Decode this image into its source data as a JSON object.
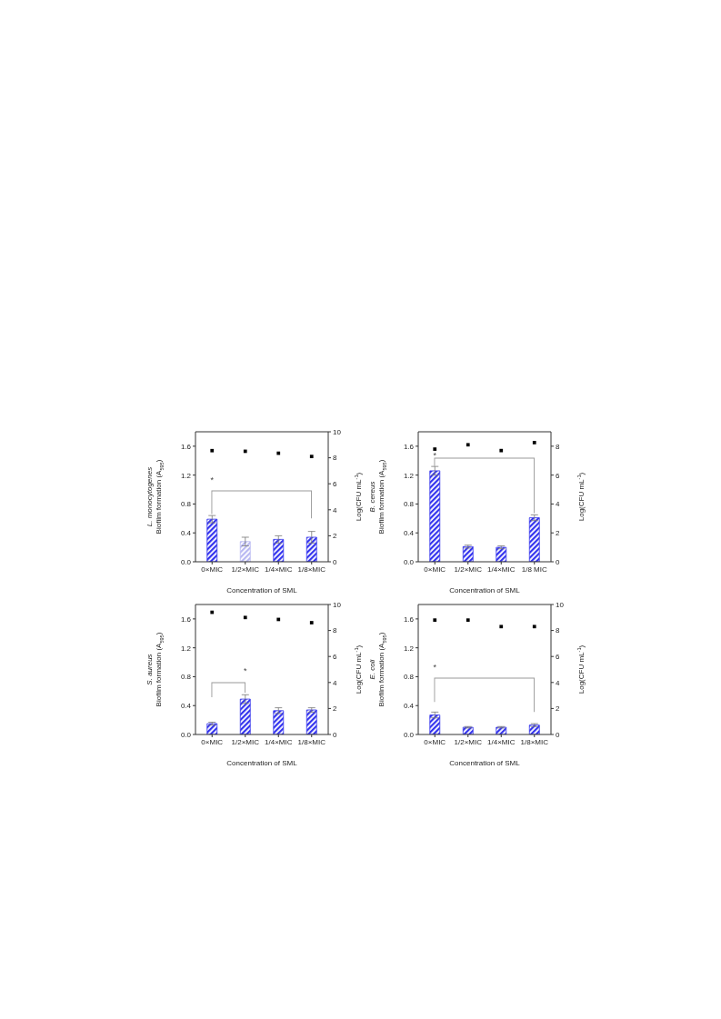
{
  "chart_data": [
    {
      "type": "bar",
      "xlabel": "Concentration of SML",
      "ylabel": "L. monocytogenes\nBiofilm formation (A$_{595}$)",
      "y2label": "Log(CFU mL$^{-1}$)",
      "categories": [
        "0×MIC",
        "1/2×MIC",
        "1/4×MIC",
        "1/8×MIC"
      ],
      "series": [
        {
          "colors": [
            "#3333ee",
            "#b8b8f2",
            "#3333ee",
            "#3333ee"
          ],
          "values": [
            0.59,
            0.28,
            0.31,
            0.34
          ],
          "errors": [
            0.05,
            0.06,
            0.05,
            0.08
          ]
        },
        {
          "type": "scatter",
          "axis": "y2",
          "color": "#000000",
          "x": [
            "0×MIC",
            "1/2×MIC",
            "1/4×MIC",
            "1/8×MIC"
          ],
          "values": [
            8.55,
            8.5,
            8.35,
            8.1
          ]
        }
      ],
      "ylim": [
        0,
        1.8
      ],
      "yticks": [
        {
          "value": 0,
          "label": "0.0"
        },
        {
          "value": 0.4,
          "label": "0.4"
        },
        {
          "value": 0.8,
          "label": "0.8"
        },
        {
          "value": 1.2,
          "label": "1.2"
        },
        {
          "value": 1.6,
          "label": "1.6"
        }
      ],
      "y2lim": [
        0,
        10
      ],
      "y2ticks": [
        0,
        2,
        4,
        6,
        8,
        10
      ],
      "marker": "square",
      "grid": false,
      "legend": false,
      "annotations": [
        "*"
      ]
    },
    {
      "type": "bar",
      "xlabel": "Concentration of SML",
      "ylabel": "B. cereus\nBiofilm formation (A$_{595}$)",
      "y2label": "Log(CFU mL$^{-1}$)",
      "categories": [
        "0×MIC",
        "1/2×MIC",
        "1/4×MIC",
        "1/8 MIC"
      ],
      "series": [
        {
          "colors": [
            "#3333ee",
            "#3333ee",
            "#3333ee",
            "#3333ee"
          ],
          "values": [
            1.26,
            0.21,
            0.2,
            0.61
          ],
          "errors": [
            0.06,
            0.02,
            0.02,
            0.04
          ]
        },
        {
          "type": "scatter",
          "axis": "y2",
          "color": "#000000",
          "x": [
            "0×MIC",
            "1/2×MIC",
            "1/4×MIC",
            "1/8 MIC"
          ],
          "values": [
            7.8,
            8.1,
            7.7,
            8.25
          ]
        }
      ],
      "ylim": [
        0,
        1.8
      ],
      "yticks": [
        {
          "value": 0,
          "label": "0.0"
        },
        {
          "value": 0.4,
          "label": "0.4"
        },
        {
          "value": 0.8,
          "label": "0.8"
        },
        {
          "value": 1.2,
          "label": "1.2"
        },
        {
          "value": 1.6,
          "label": "1.6"
        }
      ],
      "y2lim": [
        0,
        9
      ],
      "y2ticks": [
        0,
        2,
        4,
        6,
        8
      ],
      "marker": "square",
      "grid": false,
      "legend": false,
      "annotations": [
        "*"
      ]
    },
    {
      "type": "bar",
      "xlabel": "Concentration of SML",
      "ylabel": "S. aureus\nBiofilm formation (A$_{595}$)",
      "y2label": "Log(CFU mL$^{-1}$)",
      "categories": [
        "0×MIC",
        "1/2×MIC",
        "1/4×MIC",
        "1/8×MIC"
      ],
      "series": [
        {
          "colors": [
            "#3333ee",
            "#3333ee",
            "#3333ee",
            "#3333ee"
          ],
          "values": [
            0.15,
            0.49,
            0.33,
            0.34
          ],
          "errors": [
            0.02,
            0.06,
            0.04,
            0.03
          ]
        },
        {
          "type": "scatter",
          "axis": "y2",
          "color": "#000000",
          "x": [
            "0×MIC",
            "1/2×MIC",
            "1/4×MIC",
            "1/8×MIC"
          ],
          "values": [
            9.4,
            9.0,
            8.85,
            8.6
          ]
        }
      ],
      "ylim": [
        0,
        1.8
      ],
      "yticks": [
        {
          "value": 0,
          "label": "0.0"
        },
        {
          "value": 0.4,
          "label": "0.4"
        },
        {
          "value": 0.8,
          "label": "0.8"
        },
        {
          "value": 1.2,
          "label": "1.2"
        },
        {
          "value": 1.6,
          "label": "1.6"
        }
      ],
      "y2lim": [
        0,
        10
      ],
      "y2ticks": [
        0,
        2,
        4,
        6,
        8,
        10
      ],
      "marker": "square",
      "grid": false,
      "legend": false,
      "annotations": [
        "*"
      ]
    },
    {
      "type": "bar",
      "xlabel": "Concentration of SML",
      "ylabel": "E. coli\nBiofilm formation (A$_{595}$)",
      "y2label": "Log(CFU mL$^{-1}$)",
      "categories": [
        "0×MIC",
        "1/2×MIC",
        "1/4×MIC",
        "1/8×MIC"
      ],
      "series": [
        {
          "colors": [
            "#3333ee",
            "#3333ee",
            "#3333ee",
            "#3333ee"
          ],
          "values": [
            0.27,
            0.1,
            0.1,
            0.13
          ],
          "errors": [
            0.04,
            0.01,
            0.01,
            0.02
          ]
        },
        {
          "type": "scatter",
          "axis": "y2",
          "color": "#000000",
          "x": [
            "0×MIC",
            "1/2×MIC",
            "1/4×MIC",
            "1/8×MIC"
          ],
          "values": [
            8.8,
            8.8,
            8.3,
            8.3
          ]
        }
      ],
      "ylim": [
        0,
        1.8
      ],
      "yticks": [
        {
          "value": 0,
          "label": "0.0"
        },
        {
          "value": 0.4,
          "label": "0.4"
        },
        {
          "value": 0.8,
          "label": "0.8"
        },
        {
          "value": 1.2,
          "label": "1.2"
        },
        {
          "value": 1.6,
          "label": "1.6"
        }
      ],
      "y2lim": [
        0,
        10
      ],
      "y2ticks": [
        0,
        2,
        4,
        6,
        8,
        10
      ],
      "marker": "square",
      "grid": false,
      "legend": false,
      "annotations": [
        "*"
      ]
    }
  ]
}
